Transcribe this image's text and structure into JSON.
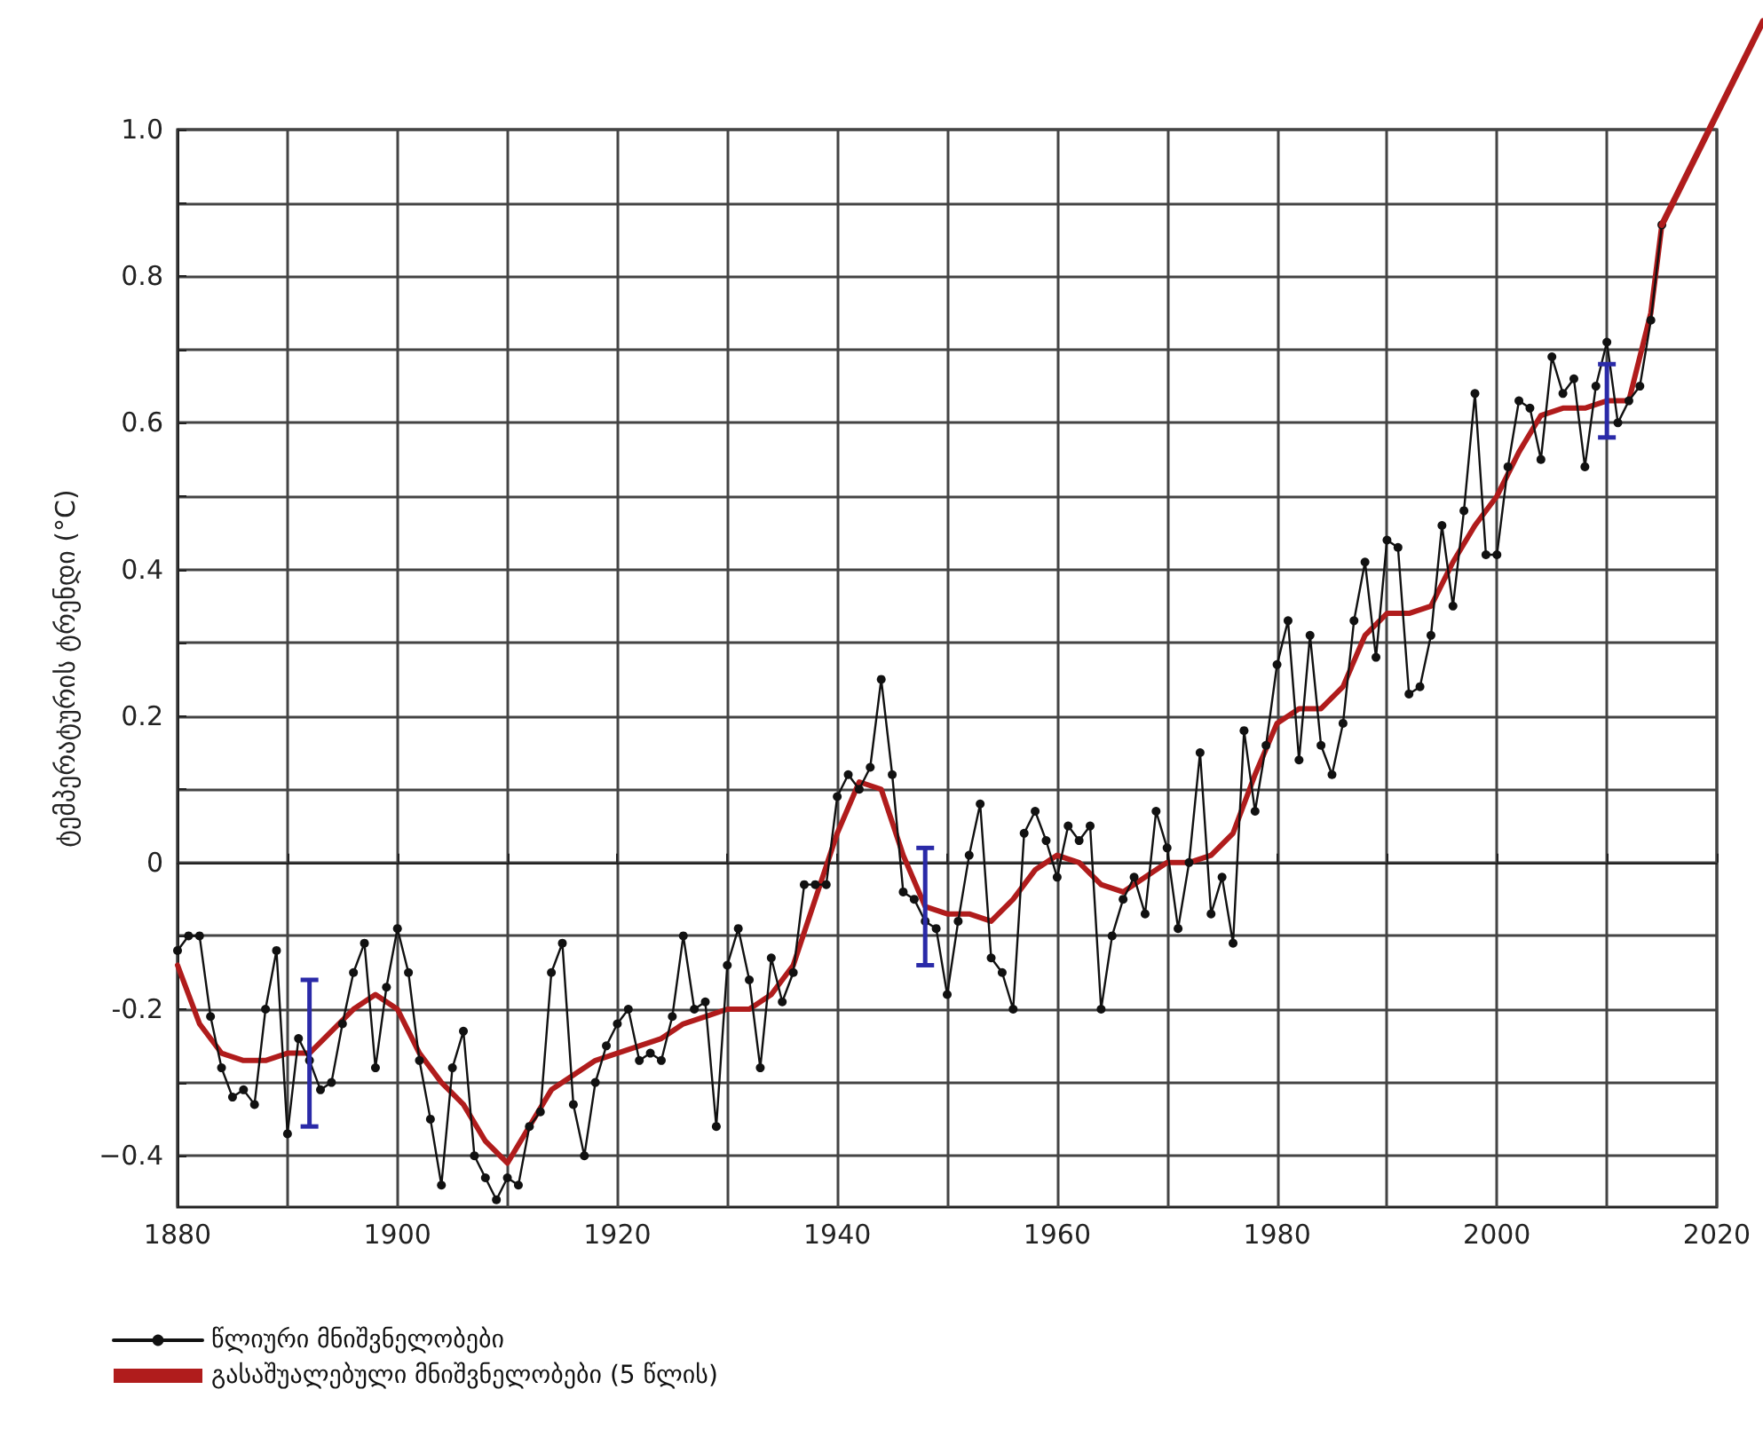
{
  "chart_data": {
    "type": "line",
    "ylabel": "ტემპერატურის ტრენდი (°C)",
    "xlim": [
      1880,
      2020
    ],
    "xticks": [
      1880,
      {
        "value": 1890,
        "label": null
      },
      1900,
      {
        "value": 1910,
        "label": null
      },
      1920,
      {
        "value": 1930,
        "label": null
      },
      1940,
      {
        "value": 1950,
        "label": null
      },
      1960,
      {
        "value": 1970,
        "label": null
      },
      1980,
      {
        "value": 1990,
        "label": null
      },
      2000,
      {
        "value": 2010,
        "label": null
      },
      2020
    ],
    "ylim": [
      -0.47,
      1.0
    ],
    "yticks": [
      {
        "value": -0.4,
        "label": "−0.4"
      },
      {
        "value": -0.3,
        "label": null
      },
      {
        "value": -0.2,
        "label": "-0.2"
      },
      {
        "value": -0.1,
        "label": null
      },
      0,
      {
        "value": 0.1,
        "label": null
      },
      0.2,
      {
        "value": 0.3,
        "label": null
      },
      0.4,
      {
        "value": 0.5,
        "label": null
      },
      0.6,
      {
        "value": 0.7,
        "label": null
      },
      0.8,
      {
        "value": 0.9,
        "label": null
      },
      {
        "value": 1,
        "label": "1.0"
      }
    ],
    "grid": true,
    "legend": "bottom",
    "series": [
      {
        "name": "წლიური მნიშვნელობები",
        "color": "#111111",
        "marker": "circle",
        "x": [
          1880,
          1881,
          1882,
          1883,
          1884,
          1885,
          1886,
          1887,
          1888,
          1889,
          1890,
          1891,
          1892,
          1893,
          1894,
          1895,
          1896,
          1897,
          1898,
          1899,
          1900,
          1901,
          1902,
          1903,
          1904,
          1905,
          1906,
          1907,
          1908,
          1909,
          1910,
          1911,
          1912,
          1913,
          1914,
          1915,
          1916,
          1917,
          1918,
          1919,
          1920,
          1921,
          1922,
          1923,
          1924,
          1925,
          1926,
          1927,
          1928,
          1929,
          1930,
          1931,
          1932,
          1933,
          1934,
          1935,
          1936,
          1937,
          1938,
          1939,
          1940,
          1941,
          1942,
          1943,
          1944,
          1945,
          1946,
          1947,
          1948,
          1949,
          1950,
          1951,
          1952,
          1953,
          1954,
          1955,
          1956,
          1957,
          1958,
          1959,
          1960,
          1961,
          1962,
          1963,
          1964,
          1965,
          1966,
          1967,
          1968,
          1969,
          1970,
          1971,
          1972,
          1973,
          1974,
          1975,
          1976,
          1977,
          1978,
          1979,
          1980,
          1981,
          1982,
          1983,
          1984,
          1985,
          1986,
          1987,
          1988,
          1989,
          1990,
          1991,
          1992,
          1993,
          1994,
          1995,
          1996,
          1997,
          1998,
          1999,
          2000,
          2001,
          2002,
          2003,
          2004,
          2005,
          2006,
          2007,
          2008,
          2009,
          2010,
          2011,
          2012,
          2013,
          2014,
          2015
        ],
        "values": [
          -0.12,
          -0.1,
          -0.1,
          -0.21,
          -0.28,
          -0.32,
          -0.31,
          -0.33,
          -0.2,
          -0.12,
          -0.37,
          -0.24,
          -0.27,
          -0.31,
          -0.3,
          -0.22,
          -0.15,
          -0.11,
          -0.28,
          -0.17,
          -0.09,
          -0.15,
          -0.27,
          -0.35,
          -0.44,
          -0.28,
          -0.23,
          -0.4,
          -0.43,
          -0.46,
          -0.43,
          -0.44,
          -0.36,
          -0.34,
          -0.15,
          -0.11,
          -0.33,
          -0.4,
          -0.3,
          -0.25,
          -0.22,
          -0.2,
          -0.27,
          -0.26,
          -0.27,
          -0.21,
          -0.1,
          -0.2,
          -0.19,
          -0.36,
          -0.14,
          -0.09,
          -0.16,
          -0.28,
          -0.13,
          -0.19,
          -0.15,
          -0.03,
          -0.03,
          -0.03,
          0.09,
          0.12,
          0.1,
          0.13,
          0.25,
          0.12,
          -0.04,
          -0.05,
          -0.08,
          -0.09,
          -0.18,
          -0.08,
          0.01,
          0.08,
          -0.13,
          -0.15,
          -0.2,
          0.04,
          0.07,
          0.03,
          -0.02,
          0.05,
          0.03,
          0.05,
          -0.2,
          -0.1,
          -0.05,
          -0.02,
          -0.07,
          0.07,
          0.02,
          -0.09,
          0.0,
          0.15,
          -0.07,
          -0.02,
          -0.11,
          0.18,
          0.07,
          0.16,
          0.27,
          0.33,
          0.14,
          0.31,
          0.16,
          0.12,
          0.19,
          0.33,
          0.41,
          0.28,
          0.44,
          0.43,
          0.23,
          0.24,
          0.31,
          0.46,
          0.35,
          0.48,
          0.64,
          0.42,
          0.42,
          0.54,
          0.63,
          0.62,
          0.55,
          0.69,
          0.64,
          0.66,
          0.54,
          0.65,
          0.71,
          0.6,
          0.63,
          0.65,
          0.74,
          0.87
        ]
      },
      {
        "name": "გასაშუალებული მნიშვნელობები (5 წლის)",
        "color": "#b01c1c",
        "marker": "none",
        "x": [
          1880,
          1882,
          1884,
          1886,
          1888,
          1890,
          1892,
          1894,
          1896,
          1898,
          1900,
          1902,
          1904,
          1906,
          1908,
          1910,
          1912,
          1914,
          1916,
          1918,
          1920,
          1922,
          1924,
          1926,
          1928,
          1930,
          1932,
          1934,
          1936,
          1938,
          1940,
          1942,
          1944,
          1946,
          1948,
          1950,
          1952,
          1954,
          1956,
          1958,
          1960,
          1962,
          1964,
          1966,
          1968,
          1970,
          1972,
          1974,
          1976,
          1978,
          1980,
          1982,
          1984,
          1986,
          1988,
          1990,
          1992,
          1994,
          1996,
          1998,
          2000,
          2002,
          2004,
          2006,
          2008,
          2010,
          2012,
          2014,
          2015
        ],
        "values": [
          -0.14,
          -0.22,
          -0.26,
          -0.27,
          -0.27,
          -0.26,
          -0.26,
          -0.23,
          -0.2,
          -0.18,
          -0.2,
          -0.26,
          -0.3,
          -0.33,
          -0.38,
          -0.41,
          -0.36,
          -0.31,
          -0.29,
          -0.27,
          -0.26,
          -0.25,
          -0.24,
          -0.22,
          -0.21,
          -0.2,
          -0.2,
          -0.18,
          -0.14,
          -0.05,
          0.04,
          0.11,
          0.1,
          0.01,
          -0.06,
          -0.07,
          -0.07,
          -0.08,
          -0.05,
          -0.01,
          0.01,
          0.0,
          -0.03,
          -0.04,
          -0.02,
          0.0,
          0.0,
          0.01,
          0.04,
          0.12,
          0.19,
          0.21,
          0.21,
          0.24,
          0.31,
          0.34,
          0.34,
          0.35,
          0.41,
          0.46,
          0.5,
          0.56,
          0.61,
          0.62,
          0.62,
          0.63,
          0.63,
          0.75,
          0.87
        ],
        "errors": [
          null,
          null,
          null,
          null,
          null,
          null,
          0.1,
          null,
          null,
          null,
          null,
          null,
          null,
          null,
          null,
          null,
          null,
          null,
          null,
          null,
          null,
          null,
          null,
          null,
          null,
          null,
          null,
          null,
          null,
          null,
          null,
          null,
          null,
          null,
          0.08,
          null,
          null,
          null,
          null,
          null,
          null,
          null,
          null,
          null,
          null,
          null,
          null,
          null,
          null,
          null,
          null,
          null,
          null,
          null,
          null,
          null,
          null,
          null,
          null,
          null,
          null,
          null,
          null,
          null,
          null,
          0.05,
          null,
          null,
          null
        ]
      }
    ]
  }
}
